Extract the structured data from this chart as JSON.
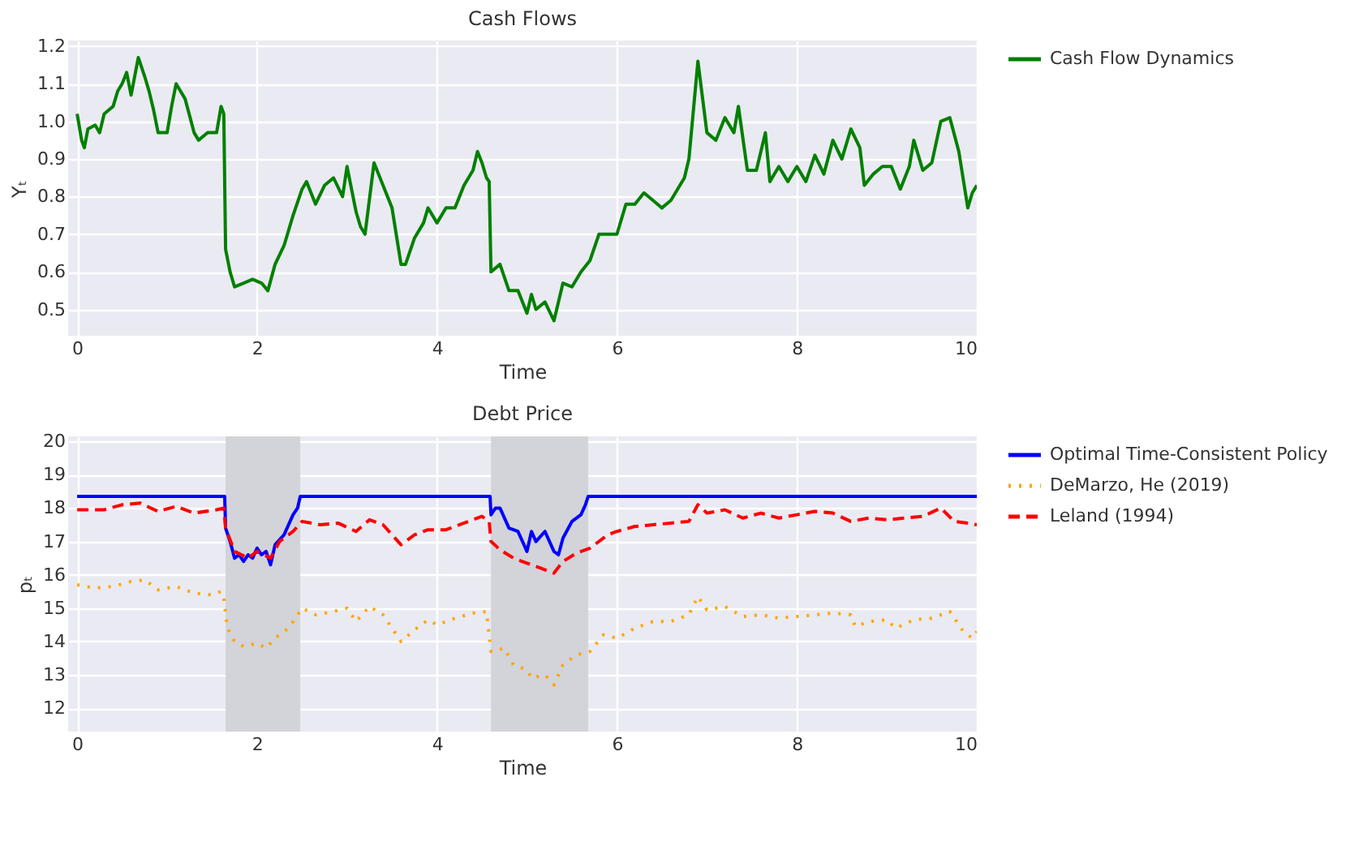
{
  "chart_data": [
    {
      "type": "line",
      "title": "Cash Flows",
      "xlabel": "Time",
      "ylabel": "Yₜ",
      "xlim": [
        -0.1,
        10
      ],
      "xticks": [
        0,
        2,
        4,
        6,
        8,
        10
      ],
      "ylim": [
        0.43,
        1.215
      ],
      "yticks": [
        0.5,
        0.6,
        0.7,
        0.8,
        0.9,
        {
          "value": 1.0,
          "label": "1.0"
        },
        1.1,
        1.2
      ],
      "grid": true,
      "legend": "right",
      "x": [
        0,
        0.05,
        0.08,
        0.12,
        0.2,
        0.25,
        0.3,
        0.35,
        0.4,
        0.45,
        0.5,
        0.55,
        0.6,
        0.68,
        0.75,
        0.8,
        0.85,
        0.9,
        1.0,
        1.05,
        1.1,
        1.2,
        1.3,
        1.35,
        1.45,
        1.55,
        1.6,
        1.63,
        1.65,
        1.7,
        1.75,
        1.85,
        1.95,
        2.05,
        2.12,
        2.2,
        2.3,
        2.4,
        2.5,
        2.55,
        2.65,
        2.75,
        2.85,
        2.95,
        3.0,
        3.1,
        3.15,
        3.2,
        3.3,
        3.4,
        3.5,
        3.6,
        3.65,
        3.75,
        3.85,
        3.9,
        4.0,
        4.1,
        4.2,
        4.3,
        4.4,
        4.45,
        4.5,
        4.55,
        4.58,
        4.6,
        4.7,
        4.8,
        4.9,
        5.0,
        5.05,
        5.1,
        5.2,
        5.3,
        5.4,
        5.5,
        5.6,
        5.7,
        5.8,
        5.9,
        6.0,
        6.1,
        6.2,
        6.3,
        6.4,
        6.5,
        6.6,
        6.75,
        6.8,
        6.9,
        7.0,
        7.1,
        7.2,
        7.3,
        7.35,
        7.45,
        7.55,
        7.65,
        7.7,
        7.8,
        7.9,
        8.0,
        8.1,
        8.2,
        8.3,
        8.4,
        8.5,
        8.6,
        8.7,
        8.75,
        8.85,
        8.95,
        9.05,
        9.15,
        9.25,
        9.3,
        9.4,
        9.5,
        9.6,
        9.7,
        9.8,
        9.9,
        9.95,
        10
      ],
      "series": [
        {
          "name": "Cash Flow Dynamics",
          "color": "#008000",
          "line_style": "solid",
          "values": [
            1.02,
            0.95,
            0.93,
            0.98,
            0.99,
            0.97,
            1.02,
            1.03,
            1.04,
            1.08,
            1.1,
            1.13,
            1.07,
            1.17,
            1.12,
            1.08,
            1.03,
            0.97,
            0.97,
            1.04,
            1.1,
            1.06,
            0.97,
            0.95,
            0.97,
            0.97,
            1.04,
            1.02,
            0.66,
            0.6,
            0.56,
            0.57,
            0.58,
            0.57,
            0.55,
            0.62,
            0.67,
            0.75,
            0.82,
            0.84,
            0.78,
            0.83,
            0.85,
            0.8,
            0.88,
            0.76,
            0.72,
            0.7,
            0.89,
            0.83,
            0.77,
            0.62,
            0.62,
            0.69,
            0.73,
            0.77,
            0.73,
            0.77,
            0.77,
            0.83,
            0.87,
            0.92,
            0.89,
            0.85,
            0.84,
            0.6,
            0.62,
            0.55,
            0.55,
            0.49,
            0.54,
            0.5,
            0.52,
            0.47,
            0.57,
            0.56,
            0.6,
            0.63,
            0.7,
            0.7,
            0.7,
            0.78,
            0.78,
            0.81,
            0.79,
            0.77,
            0.79,
            0.85,
            0.9,
            1.16,
            0.97,
            0.95,
            1.01,
            0.97,
            1.04,
            0.87,
            0.87,
            0.97,
            0.84,
            0.88,
            0.84,
            0.88,
            0.84,
            0.91,
            0.86,
            0.95,
            0.9,
            0.98,
            0.93,
            0.83,
            0.86,
            0.88,
            0.88,
            0.82,
            0.88,
            0.95,
            0.87,
            0.89,
            1.0,
            1.01,
            0.92,
            0.77,
            0.81,
            0.83
          ]
        }
      ]
    },
    {
      "type": "line",
      "title": "Debt Price",
      "xlabel": "Time",
      "ylabel": "pₜ",
      "xlim": [
        -0.1,
        10
      ],
      "xticks": [
        0,
        2,
        4,
        6,
        8,
        10
      ],
      "ylim": [
        11.3,
        20.15
      ],
      "yticks": [
        12,
        13,
        14,
        15,
        16,
        17,
        18,
        19,
        20
      ],
      "grid": true,
      "legend": "right",
      "bands": [
        {
          "axis": "x",
          "from": 1.65,
          "to": 2.48,
          "color": "#d3d3da"
        },
        {
          "axis": "x",
          "from": 4.6,
          "to": 5.68,
          "color": "#d3d3da"
        }
      ],
      "series": [
        {
          "name": "Optimal Time-Consistent Policy",
          "color": "#0000ff",
          "line_style": "solid",
          "x": [
            0,
            1.64,
            1.65,
            1.7,
            1.75,
            1.8,
            1.85,
            1.9,
            1.95,
            2.0,
            2.05,
            2.1,
            2.15,
            2.2,
            2.3,
            2.4,
            2.45,
            2.48,
            4.59,
            4.6,
            4.65,
            4.7,
            4.8,
            4.9,
            5.0,
            5.05,
            5.1,
            5.2,
            5.3,
            5.35,
            5.4,
            5.5,
            5.6,
            5.65,
            5.68,
            10
          ],
          "values": [
            18.35,
            18.35,
            17.4,
            17.0,
            16.5,
            16.6,
            16.4,
            16.6,
            16.5,
            16.8,
            16.6,
            16.7,
            16.3,
            16.9,
            17.2,
            17.8,
            18.0,
            18.35,
            18.35,
            17.8,
            18.0,
            18.0,
            17.4,
            17.3,
            16.7,
            17.3,
            17.0,
            17.3,
            16.7,
            16.6,
            17.1,
            17.6,
            17.8,
            18.1,
            18.35,
            18.35
          ]
        },
        {
          "name": "DeMarzo, He (2019)",
          "color": "#ffa500",
          "line_style": "dotted",
          "x": [
            0,
            0.2,
            0.4,
            0.6,
            0.75,
            0.9,
            1.1,
            1.3,
            1.5,
            1.6,
            1.63,
            1.67,
            1.75,
            1.85,
            2.0,
            2.1,
            2.2,
            2.35,
            2.5,
            2.65,
            2.85,
            3.0,
            3.1,
            3.25,
            3.4,
            3.6,
            3.75,
            3.9,
            4.0,
            4.2,
            4.4,
            4.55,
            4.6,
            4.75,
            4.85,
            5.0,
            5.05,
            5.2,
            5.3,
            5.4,
            5.55,
            5.7,
            5.85,
            6.0,
            6.2,
            6.4,
            6.6,
            6.8,
            6.9,
            7.0,
            7.2,
            7.4,
            7.6,
            7.8,
            8.0,
            8.2,
            8.4,
            8.6,
            8.65,
            8.8,
            9.0,
            9.1,
            9.3,
            9.5,
            9.7,
            9.85,
            9.95,
            10
          ],
          "values": [
            15.7,
            15.6,
            15.65,
            15.8,
            15.85,
            15.55,
            15.65,
            15.45,
            15.4,
            15.5,
            15.3,
            14.4,
            14.0,
            13.85,
            13.95,
            13.8,
            14.1,
            14.4,
            15.0,
            14.8,
            14.9,
            15.0,
            14.6,
            15.05,
            14.8,
            14.0,
            14.35,
            14.65,
            14.5,
            14.7,
            14.85,
            14.9,
            13.7,
            13.8,
            13.3,
            13.15,
            12.9,
            13.0,
            12.7,
            13.3,
            13.6,
            13.7,
            14.2,
            14.1,
            14.4,
            14.6,
            14.6,
            14.8,
            15.35,
            14.95,
            15.05,
            14.75,
            14.8,
            14.7,
            14.75,
            14.8,
            14.85,
            14.8,
            14.45,
            14.6,
            14.65,
            14.4,
            14.65,
            14.7,
            14.9,
            14.3,
            14.1,
            14.3
          ]
        },
        {
          "name": "Leland (1994)",
          "color": "#ff0000",
          "line_style": "dashed",
          "x": [
            0,
            0.3,
            0.5,
            0.7,
            0.9,
            1.1,
            1.3,
            1.55,
            1.63,
            1.65,
            1.75,
            1.9,
            2.0,
            2.15,
            2.25,
            2.4,
            2.5,
            2.7,
            2.9,
            3.1,
            3.25,
            3.4,
            3.6,
            3.75,
            3.9,
            4.1,
            4.3,
            4.5,
            4.58,
            4.6,
            4.7,
            4.85,
            5.0,
            5.15,
            5.3,
            5.4,
            5.55,
            5.7,
            5.9,
            6.0,
            6.2,
            6.4,
            6.6,
            6.8,
            6.9,
            7.0,
            7.2,
            7.4,
            7.6,
            7.8,
            8.0,
            8.2,
            8.4,
            8.6,
            8.8,
            9.0,
            9.2,
            9.4,
            9.6,
            9.75,
            9.9,
            10
          ],
          "values": [
            17.95,
            17.95,
            18.1,
            18.15,
            17.9,
            18.05,
            17.85,
            17.95,
            18.0,
            17.4,
            16.7,
            16.5,
            16.7,
            16.5,
            17.0,
            17.3,
            17.6,
            17.5,
            17.55,
            17.3,
            17.65,
            17.5,
            16.9,
            17.2,
            17.35,
            17.35,
            17.55,
            17.75,
            17.6,
            17.0,
            16.75,
            16.5,
            16.35,
            16.2,
            16.05,
            16.4,
            16.65,
            16.8,
            17.2,
            17.3,
            17.45,
            17.5,
            17.55,
            17.6,
            18.1,
            17.85,
            17.95,
            17.7,
            17.85,
            17.7,
            17.8,
            17.9,
            17.85,
            17.6,
            17.7,
            17.65,
            17.7,
            17.75,
            18.0,
            17.6,
            17.55,
            17.5
          ]
        }
      ]
    }
  ]
}
